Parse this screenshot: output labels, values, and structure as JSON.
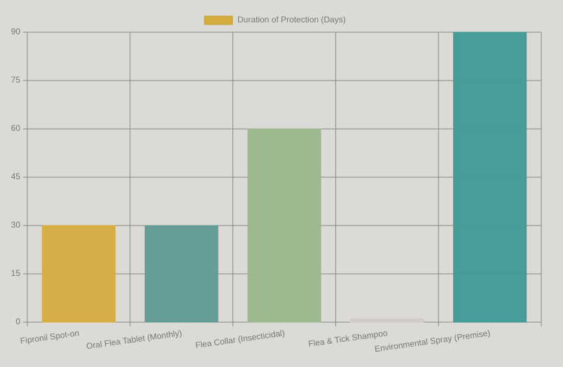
{
  "chart_data": {
    "type": "bar",
    "categories": [
      "Fipronil Spot-on",
      "Oral Flea Tablet (Monthly)",
      "Flea Collar (Insecticidal)",
      "Flea & Tick Shampoo",
      "Environmental Spray (Premise)"
    ],
    "series": [
      {
        "name": "Duration of Protection (Days)",
        "color": "#d4ac3f",
        "values": [
          30,
          30,
          60,
          1,
          90
        ]
      }
    ],
    "bar_colors": [
      "#d4ac3f",
      "#5f9a94",
      "#9ab78c",
      "#cfccc7",
      "#3e9a95"
    ],
    "ylim": [
      0,
      90
    ],
    "yticks": [
      0,
      15,
      30,
      45,
      60,
      75,
      90
    ],
    "grid": true
  }
}
